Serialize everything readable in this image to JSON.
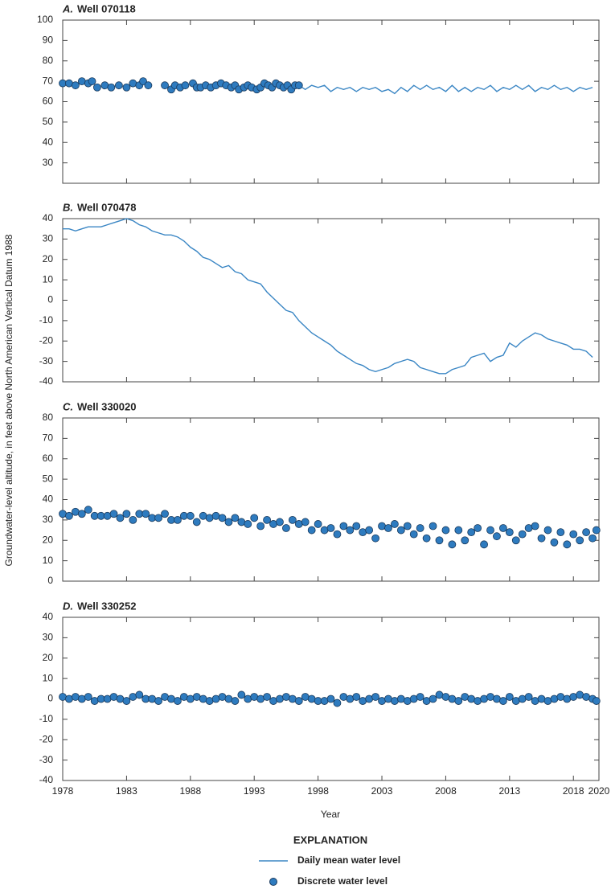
{
  "ylabel": "Groundwater-level altitude, in feet above North American Vertical Datum 1988",
  "legend_title": "EXPLANATION",
  "chart_data": [
    {
      "type": "line",
      "panel": "A.",
      "title": "Well 070118",
      "xlim": [
        1978,
        2020
      ],
      "xticks": [
        1978,
        1983,
        1988,
        1993,
        1998,
        2003,
        2008,
        2013,
        2018,
        2020
      ],
      "ylim": [
        20,
        100
      ],
      "yticks": [
        30,
        40,
        50,
        60,
        70,
        80,
        90,
        100
      ],
      "grid": false,
      "series": [
        {
          "name": "Daily mean water level",
          "type": "line",
          "color": "#3a86c4",
          "x": [
            1996.5,
            1997,
            1997.5,
            1998,
            1998.5,
            1999,
            1999.5,
            2000,
            2000.5,
            2001,
            2001.5,
            2002,
            2002.5,
            2003,
            2003.5,
            2004,
            2004.5,
            2005,
            2005.5,
            2006,
            2006.5,
            2007,
            2007.5,
            2008,
            2008.5,
            2009,
            2009.5,
            2010,
            2010.5,
            2011,
            2011.5,
            2012,
            2012.5,
            2013,
            2013.5,
            2014,
            2014.5,
            2015,
            2015.5,
            2016,
            2016.5,
            2017,
            2017.5,
            2018,
            2018.5,
            2019,
            2019.5
          ],
          "values": [
            68,
            66,
            68,
            67,
            68,
            65,
            67,
            66,
            67,
            65,
            67,
            66,
            67,
            65,
            66,
            64,
            67,
            65,
            68,
            66,
            68,
            66,
            67,
            65,
            68,
            65,
            67,
            65,
            67,
            66,
            68,
            65,
            67,
            66,
            68,
            66,
            68,
            65,
            67,
            66,
            68,
            66,
            67,
            65,
            67,
            66,
            67
          ]
        },
        {
          "name": "Discrete water level",
          "type": "scatter",
          "color": "#2e7bbf",
          "x": [
            1978.0,
            1978.5,
            1979.0,
            1979.5,
            1980.0,
            1980.3,
            1980.7,
            1981.3,
            1981.8,
            1982.4,
            1983.0,
            1983.5,
            1984.0,
            1984.3,
            1984.7,
            1986.0,
            1986.5,
            1986.8,
            1987.2,
            1987.6,
            1988.2,
            1988.5,
            1988.8,
            1989.2,
            1989.6,
            1990.0,
            1990.4,
            1990.8,
            1991.2,
            1991.5,
            1991.8,
            1992.2,
            1992.5,
            1992.8,
            1993.2,
            1993.5,
            1993.8,
            1994.1,
            1994.4,
            1994.7,
            1995.0,
            1995.3,
            1995.6,
            1995.9,
            1996.2,
            1996.5
          ],
          "values": [
            69,
            69,
            68,
            70,
            69,
            70,
            67,
            68,
            67,
            68,
            67,
            69,
            68,
            70,
            68,
            68,
            66,
            68,
            67,
            68,
            69,
            67,
            67,
            68,
            67,
            68,
            69,
            68,
            67,
            68,
            66,
            67,
            68,
            67,
            66,
            67,
            69,
            68,
            67,
            69,
            68,
            67,
            68,
            66,
            68,
            68
          ]
        }
      ]
    },
    {
      "type": "line",
      "panel": "B.",
      "title": "Well 070478",
      "xlim": [
        1978,
        2020
      ],
      "xticks": [
        1978,
        1983,
        1988,
        1993,
        1998,
        2003,
        2008,
        2013,
        2018,
        2020
      ],
      "ylim": [
        -40,
        40
      ],
      "yticks": [
        -40,
        -30,
        -20,
        -10,
        0,
        10,
        20,
        30,
        40
      ],
      "grid": false,
      "series": [
        {
          "name": "Daily mean water level",
          "type": "line",
          "color": "#3a86c4",
          "x": [
            1978,
            1978.5,
            1979,
            1979.5,
            1980,
            1980.5,
            1981,
            1981.5,
            1982,
            1982.5,
            1983,
            1983.5,
            1984,
            1984.5,
            1985,
            1985.5,
            1986,
            1986.5,
            1987,
            1987.5,
            1988,
            1988.5,
            1989,
            1989.5,
            1990,
            1990.5,
            1991,
            1991.5,
            1992,
            1992.5,
            1993,
            1993.5,
            1994,
            1994.5,
            1995,
            1995.5,
            1996,
            1996.5,
            1997,
            1997.5,
            1998,
            1998.5,
            1999,
            1999.5,
            2000,
            2000.5,
            2001,
            2001.5,
            2002,
            2002.5,
            2003,
            2003.5,
            2004,
            2004.5,
            2005,
            2005.5,
            2006,
            2006.5,
            2007,
            2007.5,
            2008,
            2008.5,
            2009,
            2009.5,
            2010,
            2010.5,
            2011,
            2011.5,
            2012,
            2012.5,
            2013,
            2013.5,
            2014,
            2014.5,
            2015,
            2015.5,
            2016,
            2016.5,
            2017,
            2017.5,
            2018,
            2018.5,
            2019,
            2019.5
          ],
          "values": [
            35,
            35,
            34,
            35,
            36,
            36,
            36,
            37,
            38,
            39,
            40,
            39,
            37,
            36,
            34,
            33,
            32,
            32,
            31,
            29,
            26,
            24,
            21,
            20,
            18,
            16,
            17,
            14,
            13,
            10,
            9,
            8,
            4,
            1,
            -2,
            -5,
            -6,
            -10,
            -13,
            -16,
            -18,
            -20,
            -22,
            -25,
            -27,
            -29,
            -31,
            -32,
            -34,
            -35,
            -34,
            -33,
            -31,
            -30,
            -29,
            -30,
            -33,
            -34,
            -35,
            -36,
            -36,
            -34,
            -33,
            -32,
            -28,
            -27,
            -26,
            -30,
            -28,
            -27,
            -21,
            -23,
            -20,
            -18,
            -16,
            -17,
            -19,
            -20,
            -21,
            -22,
            -24,
            -24,
            -25,
            -28
          ]
        }
      ]
    },
    {
      "type": "scatter",
      "panel": "C.",
      "title": "Well 330020",
      "xlim": [
        1978,
        2020
      ],
      "xticks": [
        1978,
        1983,
        1988,
        1993,
        1998,
        2003,
        2008,
        2013,
        2018,
        2020
      ],
      "ylim": [
        0,
        80
      ],
      "yticks": [
        0,
        10,
        20,
        30,
        40,
        50,
        60,
        70,
        80
      ],
      "grid": false,
      "series": [
        {
          "name": "Discrete water level",
          "type": "scatter",
          "color": "#2e7bbf",
          "x": [
            1978,
            1978.5,
            1979,
            1979.5,
            1980,
            1980.5,
            1981,
            1981.5,
            1982,
            1982.5,
            1983,
            1983.5,
            1984,
            1984.5,
            1985,
            1985.5,
            1986,
            1986.5,
            1987,
            1987.5,
            1988,
            1988.5,
            1989,
            1989.5,
            1990,
            1990.5,
            1991,
            1991.5,
            1992,
            1992.5,
            1993,
            1993.5,
            1994,
            1994.5,
            1995,
            1995.5,
            1996,
            1996.5,
            1997,
            1997.5,
            1998,
            1998.5,
            1999,
            1999.5,
            2000,
            2000.5,
            2001,
            2001.5,
            2002,
            2002.5,
            2003,
            2003.5,
            2004,
            2004.5,
            2005,
            2005.5,
            2006,
            2006.5,
            2007,
            2007.5,
            2008,
            2008.5,
            2009,
            2009.5,
            2010,
            2010.5,
            2011,
            2011.5,
            2012,
            2012.5,
            2013,
            2013.5,
            2014,
            2014.5,
            2015,
            2015.5,
            2016,
            2016.5,
            2017,
            2017.5,
            2018,
            2018.5,
            2019,
            2019.5,
            2019.8
          ],
          "values": [
            33,
            32,
            34,
            33,
            35,
            32,
            32,
            32,
            33,
            31,
            33,
            30,
            33,
            33,
            31,
            31,
            33,
            30,
            30,
            32,
            32,
            29,
            32,
            31,
            32,
            31,
            29,
            31,
            29,
            28,
            31,
            27,
            30,
            28,
            29,
            26,
            30,
            28,
            29,
            25,
            28,
            25,
            26,
            23,
            27,
            25,
            27,
            24,
            25,
            21,
            27,
            26,
            28,
            25,
            27,
            23,
            26,
            21,
            27,
            20,
            25,
            18,
            25,
            20,
            24,
            26,
            18,
            25,
            22,
            26,
            24,
            20,
            23,
            26,
            27,
            21,
            25,
            19,
            24,
            18,
            23,
            20,
            24,
            21,
            25
          ]
        }
      ]
    },
    {
      "type": "scatter",
      "panel": "D.",
      "title": "Well 330252",
      "xlabel": "Year",
      "xlim": [
        1978,
        2020
      ],
      "xticks": [
        1978,
        1983,
        1988,
        1993,
        1998,
        2003,
        2008,
        2013,
        2018,
        2020
      ],
      "ylim": [
        -40,
        40
      ],
      "yticks": [
        -40,
        -30,
        -20,
        -10,
        0,
        10,
        20,
        30,
        40
      ],
      "grid": false,
      "series": [
        {
          "name": "Discrete water level",
          "type": "scatter",
          "color": "#2e7bbf",
          "x": [
            1978,
            1978.5,
            1979,
            1979.5,
            1980,
            1980.5,
            1981,
            1981.5,
            1982,
            1982.5,
            1983,
            1983.5,
            1984,
            1984.5,
            1985,
            1985.5,
            1986,
            1986.5,
            1987,
            1987.5,
            1988,
            1988.5,
            1989,
            1989.5,
            1990,
            1990.5,
            1991,
            1991.5,
            1992,
            1992.5,
            1993,
            1993.5,
            1994,
            1994.5,
            1995,
            1995.5,
            1996,
            1996.5,
            1997,
            1997.5,
            1998,
            1998.5,
            1999,
            1999.5,
            2000,
            2000.5,
            2001,
            2001.5,
            2002,
            2002.5,
            2003,
            2003.5,
            2004,
            2004.5,
            2005,
            2005.5,
            2006,
            2006.5,
            2007,
            2007.5,
            2008,
            2008.5,
            2009,
            2009.5,
            2010,
            2010.5,
            2011,
            2011.5,
            2012,
            2012.5,
            2013,
            2013.5,
            2014,
            2014.5,
            2015,
            2015.5,
            2016,
            2016.5,
            2017,
            2017.5,
            2018,
            2018.5,
            2019,
            2019.5,
            2019.8
          ],
          "values": [
            1,
            0,
            1,
            0,
            1,
            -1,
            0,
            0,
            1,
            0,
            -1,
            1,
            2,
            0,
            0,
            -1,
            1,
            0,
            -1,
            1,
            0,
            1,
            0,
            -1,
            0,
            1,
            0,
            -1,
            2,
            0,
            1,
            0,
            1,
            -1,
            0,
            1,
            0,
            -1,
            1,
            0,
            -1,
            -1,
            0,
            -2,
            1,
            0,
            1,
            -1,
            0,
            1,
            -1,
            0,
            -1,
            0,
            -1,
            0,
            1,
            -1,
            0,
            2,
            1,
            0,
            -1,
            1,
            0,
            -1,
            0,
            1,
            0,
            -1,
            1,
            -1,
            0,
            1,
            -1,
            0,
            -1,
            0,
            1,
            0,
            1,
            2,
            1,
            0,
            -1
          ]
        }
      ]
    }
  ]
}
